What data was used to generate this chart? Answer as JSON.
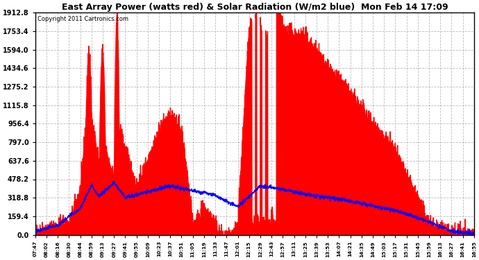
{
  "title": "East Array Power (watts red) & Solar Radiation (W/m2 blue)  Mon Feb 14 17:09",
  "copyright": "Copyright 2011 Cartronics.com",
  "background_color": "#ffffff",
  "plot_bg_color": "#ffffff",
  "grid_color": "#aaaaaa",
  "yticks": [
    0.0,
    159.4,
    318.8,
    478.2,
    637.6,
    797.0,
    956.4,
    1115.8,
    1275.2,
    1434.6,
    1594.0,
    1753.4,
    1912.8
  ],
  "ymax": 1912.8,
  "ymin": 0.0,
  "xtick_labels": [
    "07:47",
    "08:02",
    "08:16",
    "08:30",
    "08:44",
    "08:59",
    "09:13",
    "09:27",
    "09:41",
    "09:55",
    "10:09",
    "10:23",
    "10:37",
    "10:51",
    "11:05",
    "11:19",
    "11:33",
    "11:47",
    "12:01",
    "12:15",
    "12:29",
    "12:43",
    "12:57",
    "13:11",
    "13:25",
    "13:39",
    "13:53",
    "14:07",
    "14:21",
    "14:35",
    "14:49",
    "15:03",
    "15:17",
    "15:31",
    "15:45",
    "15:59",
    "16:13",
    "16:27",
    "16:41",
    "16:55"
  ],
  "power_color": "#ff0000",
  "radiation_color": "#0000ff",
  "fill_alpha": 1.0
}
